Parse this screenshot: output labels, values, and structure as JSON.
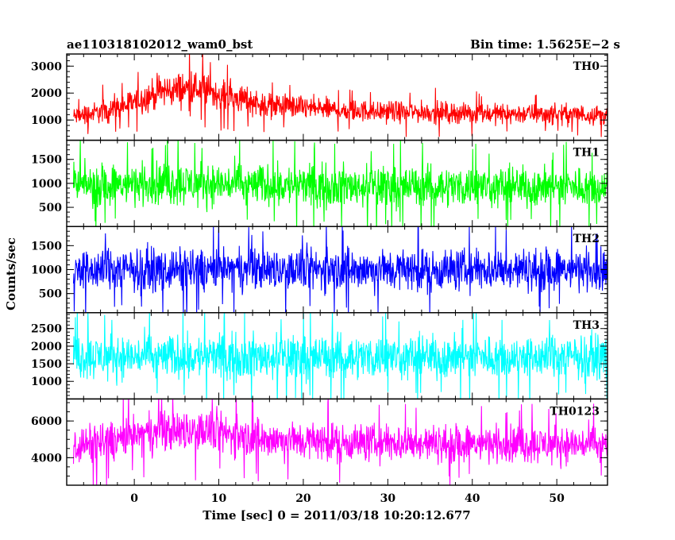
{
  "header": {
    "title": "ae110318102012_wam0_bst",
    "bin_time": "Bin time: 1.5625E−2 s"
  },
  "chart_data": {
    "type": "line",
    "xlabel": "Time [sec] 0 = 2011/03/18 10:20:12.677",
    "ylabel": "Counts/sec",
    "xlim": [
      -8,
      56
    ],
    "xticks": [
      0,
      10,
      20,
      30,
      40,
      50
    ],
    "x_minor_step": 2,
    "grid": false,
    "panels": [
      {
        "name": "TH0",
        "color": "#ff0000",
        "ylim": [
          250,
          3450
        ],
        "yticks": [
          1000,
          2000,
          3000
        ],
        "y_minor_step": 200,
        "profile": [
          {
            "t": -7,
            "center": 1130,
            "spread": 520
          },
          {
            "t": -2,
            "center": 1420,
            "spread": 680
          },
          {
            "t": 3,
            "center": 2050,
            "spread": 900
          },
          {
            "t": 7,
            "center": 2200,
            "spread": 950
          },
          {
            "t": 11,
            "center": 1900,
            "spread": 820
          },
          {
            "t": 16,
            "center": 1550,
            "spread": 680
          },
          {
            "t": 25,
            "center": 1350,
            "spread": 600
          },
          {
            "t": 40,
            "center": 1250,
            "spread": 560
          },
          {
            "t": 56,
            "center": 1200,
            "spread": 540
          }
        ]
      },
      {
        "name": "TH1",
        "color": "#00ff00",
        "ylim": [
          100,
          1900
        ],
        "yticks": [
          500,
          1000,
          1500
        ],
        "y_minor_step": 100,
        "profile": [
          {
            "t": -7,
            "center": 950,
            "spread": 620
          },
          {
            "t": 5,
            "center": 1000,
            "spread": 650
          },
          {
            "t": 20,
            "center": 950,
            "spread": 620
          },
          {
            "t": 56,
            "center": 930,
            "spread": 600
          }
        ]
      },
      {
        "name": "TH2",
        "color": "#0000ff",
        "ylim": [
          100,
          1900
        ],
        "yticks": [
          500,
          1000,
          1500
        ],
        "y_minor_step": 100,
        "profile": [
          {
            "t": -7,
            "center": 1000,
            "spread": 640
          },
          {
            "t": 20,
            "center": 1000,
            "spread": 650
          },
          {
            "t": 56,
            "center": 1000,
            "spread": 640
          }
        ]
      },
      {
        "name": "TH3",
        "color": "#00ffff",
        "ylim": [
          500,
          2950
        ],
        "yticks": [
          1000,
          1500,
          2000,
          2500
        ],
        "y_minor_step": 100,
        "profile": [
          {
            "t": -7,
            "center": 1700,
            "spread": 900
          },
          {
            "t": 20,
            "center": 1700,
            "spread": 900
          },
          {
            "t": 56,
            "center": 1700,
            "spread": 880
          }
        ]
      },
      {
        "name": "TH0123",
        "color": "#ff00ff",
        "ylim": [
          2500,
          7200
        ],
        "yticks": [
          4000,
          6000
        ],
        "y_minor_step": 500,
        "profile": [
          {
            "t": -7,
            "center": 4600,
            "spread": 1500
          },
          {
            "t": 3,
            "center": 5400,
            "spread": 1700
          },
          {
            "t": 8,
            "center": 5500,
            "spread": 1700
          },
          {
            "t": 15,
            "center": 5000,
            "spread": 1550
          },
          {
            "t": 30,
            "center": 4800,
            "spread": 1500
          },
          {
            "t": 56,
            "center": 4700,
            "spread": 1450
          }
        ]
      }
    ]
  }
}
